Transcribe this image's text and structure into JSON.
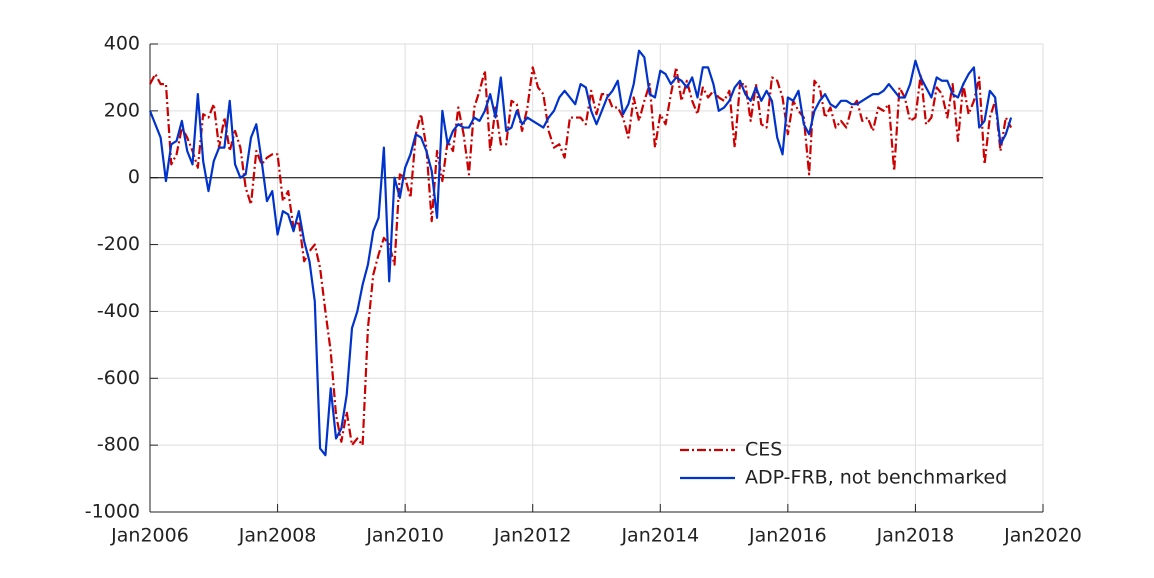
{
  "chart_data": {
    "type": "line",
    "x": [
      "2006-01",
      "2006-02",
      "2006-03",
      "2006-04",
      "2006-05",
      "2006-06",
      "2006-07",
      "2006-08",
      "2006-09",
      "2006-10",
      "2006-11",
      "2006-12",
      "2007-01",
      "2007-02",
      "2007-03",
      "2007-04",
      "2007-05",
      "2007-06",
      "2007-07",
      "2007-08",
      "2007-09",
      "2007-10",
      "2007-11",
      "2007-12",
      "2008-01",
      "2008-02",
      "2008-03",
      "2008-04",
      "2008-05",
      "2008-06",
      "2008-07",
      "2008-08",
      "2008-09",
      "2008-10",
      "2008-11",
      "2008-12",
      "2009-01",
      "2009-02",
      "2009-03",
      "2009-04",
      "2009-05",
      "2009-06",
      "2009-07",
      "2009-08",
      "2009-09",
      "2009-10",
      "2009-11",
      "2009-12",
      "2010-01",
      "2010-02",
      "2010-03",
      "2010-04",
      "2010-05",
      "2010-06",
      "2010-07",
      "2010-08",
      "2010-09",
      "2010-10",
      "2010-11",
      "2010-12",
      "2011-01",
      "2011-02",
      "2011-03",
      "2011-04",
      "2011-05",
      "2011-06",
      "2011-07",
      "2011-08",
      "2011-09",
      "2011-10",
      "2011-11",
      "2011-12",
      "2012-01",
      "2012-02",
      "2012-03",
      "2012-04",
      "2012-05",
      "2012-06",
      "2012-07",
      "2012-08",
      "2012-09",
      "2012-10",
      "2012-11",
      "2012-12",
      "2013-01",
      "2013-02",
      "2013-03",
      "2013-04",
      "2013-05",
      "2013-06",
      "2013-07",
      "2013-08",
      "2013-09",
      "2013-10",
      "2013-11",
      "2013-12",
      "2014-01",
      "2014-02",
      "2014-03",
      "2014-04",
      "2014-05",
      "2014-06",
      "2014-07",
      "2014-08",
      "2014-09",
      "2014-10",
      "2014-11",
      "2014-12",
      "2015-01",
      "2015-02",
      "2015-03",
      "2015-04",
      "2015-05",
      "2015-06",
      "2015-07",
      "2015-08",
      "2015-09",
      "2015-10",
      "2015-11",
      "2015-12",
      "2016-01",
      "2016-02",
      "2016-03",
      "2016-04",
      "2016-05",
      "2016-06",
      "2016-07",
      "2016-08",
      "2016-09",
      "2016-10",
      "2016-11",
      "2016-12",
      "2017-01",
      "2017-02",
      "2017-03",
      "2017-04",
      "2017-05",
      "2017-06",
      "2017-07",
      "2017-08",
      "2017-09",
      "2017-10",
      "2017-11",
      "2017-12",
      "2018-01",
      "2018-02",
      "2018-03",
      "2018-04",
      "2018-05",
      "2018-06",
      "2018-07",
      "2018-08",
      "2018-09",
      "2018-10",
      "2018-11",
      "2018-12",
      "2019-01",
      "2019-02",
      "2019-03",
      "2019-04",
      "2019-05",
      "2019-06",
      "2019-07"
    ],
    "series": [
      {
        "name": "CES",
        "color": "#cc0000",
        "dash": "dash-dot",
        "values": [
          280,
          310,
          280,
          280,
          40,
          70,
          150,
          120,
          80,
          30,
          190,
          180,
          220,
          90,
          180,
          80,
          140,
          90,
          -30,
          -80,
          80,
          40,
          60,
          70,
          70,
          -70,
          -40,
          -150,
          -130,
          -250,
          -220,
          -200,
          -270,
          -400,
          -520,
          -710,
          -790,
          -700,
          -800,
          -780,
          -800,
          -450,
          -290,
          -230,
          -180,
          -200,
          -260,
          10,
          0,
          -60,
          130,
          190,
          90,
          -130,
          80,
          -10,
          110,
          80,
          210,
          130,
          10,
          210,
          260,
          320,
          80,
          210,
          100,
          100,
          230,
          220,
          140,
          210,
          330,
          270,
          250,
          140,
          90,
          100,
          60,
          180,
          180,
          180,
          160,
          260,
          190,
          250,
          250,
          210,
          210,
          180,
          120,
          240,
          170,
          230,
          280,
          90,
          190,
          160,
          250,
          330,
          230,
          290,
          230,
          190,
          270,
          240,
          260,
          240,
          230,
          260,
          90,
          280,
          280,
          170,
          280,
          160,
          150,
          300,
          290,
          240,
          130,
          230,
          200,
          180,
          10,
          290,
          270,
          180,
          210,
          150,
          170,
          150,
          210,
          230,
          170,
          180,
          140,
          210,
          200,
          220,
          20,
          270,
          240,
          170,
          180,
          310,
          160,
          180,
          270,
          250,
          180,
          280,
          110,
          280,
          190,
          230,
          300,
          40,
          180,
          230,
          80,
          180,
          150
        ]
      },
      {
        "name": "ADP-FRB, not benchmarked",
        "color": "#0033cc",
        "dash": "solid",
        "values": [
          200,
          160,
          120,
          -10,
          100,
          110,
          170,
          80,
          40,
          250,
          50,
          -40,
          50,
          90,
          90,
          230,
          40,
          0,
          10,
          120,
          160,
          50,
          -70,
          -40,
          -170,
          -100,
          -110,
          -160,
          -100,
          -190,
          -250,
          -370,
          -810,
          -830,
          -630,
          -780,
          -750,
          -650,
          -450,
          -400,
          -320,
          -260,
          -160,
          -120,
          90,
          -310,
          0,
          -60,
          30,
          70,
          130,
          120,
          80,
          20,
          -120,
          200,
          100,
          140,
          160,
          150,
          150,
          180,
          170,
          200,
          250,
          180,
          300,
          140,
          150,
          200,
          160,
          180,
          170,
          160,
          150,
          180,
          200,
          240,
          260,
          240,
          220,
          280,
          270,
          200,
          160,
          200,
          240,
          260,
          290,
          190,
          220,
          280,
          380,
          360,
          250,
          240,
          320,
          310,
          280,
          300,
          290,
          270,
          300,
          240,
          330,
          330,
          280,
          200,
          210,
          230,
          270,
          290,
          250,
          230,
          270,
          230,
          260,
          230,
          120,
          70,
          240,
          230,
          260,
          160,
          130,
          200,
          230,
          250,
          220,
          210,
          230,
          230,
          220,
          220,
          230,
          240,
          250,
          250,
          260,
          280,
          260,
          240,
          240,
          280,
          350,
          300,
          270,
          240,
          300,
          290,
          290,
          250,
          240,
          280,
          310,
          330,
          150,
          170,
          260,
          240,
          100,
          130,
          180
        ]
      }
    ],
    "xlim": [
      "2006-01",
      "2020-01"
    ],
    "xticks": [
      {
        "value": "2006-01",
        "label": "Jan2006"
      },
      {
        "value": "2008-01",
        "label": "Jan2008"
      },
      {
        "value": "2010-01",
        "label": "Jan2010"
      },
      {
        "value": "2012-01",
        "label": "Jan2012"
      },
      {
        "value": "2014-01",
        "label": "Jan2014"
      },
      {
        "value": "2016-01",
        "label": "Jan2016"
      },
      {
        "value": "2018-01",
        "label": "Jan2018"
      },
      {
        "value": "2020-01",
        "label": "Jan2020"
      }
    ],
    "ylim": [
      -1000,
      400
    ],
    "yticks": [
      -1000,
      -800,
      -600,
      -400,
      -200,
      0,
      200,
      400
    ],
    "grid": true,
    "zero_line": true,
    "legend": "lower right"
  }
}
